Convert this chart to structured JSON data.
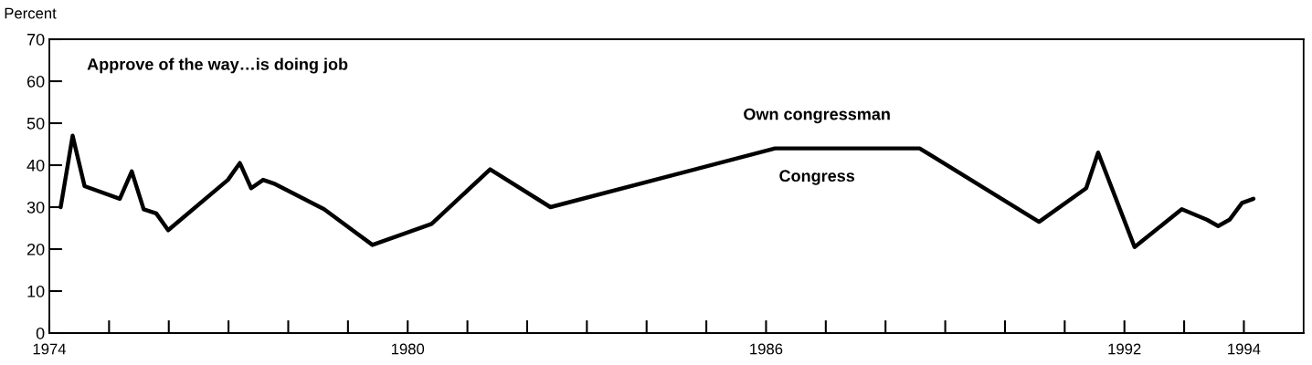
{
  "chart_data": {
    "type": "line",
    "title": "Approve of the way…is doing job",
    "ylabel": "Percent",
    "x": [
      1974.19,
      1974.39,
      1974.59,
      1975.18,
      1975.38,
      1975.58,
      1975.79,
      1975.99,
      1976.99,
      1977.19,
      1977.38,
      1977.58,
      1977.78,
      1978.6,
      1979.41,
      1980.4,
      1981.38,
      1982.39,
      1986.15,
      1988.57,
      1990.57,
      1991.36,
      1991.56,
      1992.17,
      1992.96,
      1993.38,
      1993.57,
      1993.76,
      1993.97,
      1994.16
    ],
    "series": [
      {
        "color": "#000000",
        "values": [
          30,
          47,
          35,
          32,
          38.5,
          29.5,
          28.5,
          24.5,
          36.5,
          40.5,
          34.5,
          36.5,
          35.5,
          29.5,
          21,
          26,
          39,
          30,
          44,
          44,
          26.5,
          34.5,
          43,
          20.5,
          29.5,
          27,
          25.5,
          27,
          31,
          32
        ]
      }
    ],
    "annotations": [
      "Own congressman",
      "Congress"
    ],
    "xlim": [
      1974,
      1995
    ],
    "ylim": [
      0,
      70
    ],
    "xticks": [
      1974,
      {
        "value": 1975,
        "label": null
      },
      {
        "value": 1976,
        "label": null
      },
      {
        "value": 1977,
        "label": null
      },
      {
        "value": 1978,
        "label": null
      },
      {
        "value": 1979,
        "label": null
      },
      1980,
      {
        "value": 1981,
        "label": null
      },
      {
        "value": 1982,
        "label": null
      },
      {
        "value": 1983,
        "label": null
      },
      {
        "value": 1984,
        "label": null
      },
      {
        "value": 1985,
        "label": null
      },
      1986,
      {
        "value": 1987,
        "label": null
      },
      {
        "value": 1988,
        "label": null
      },
      {
        "value": 1989,
        "label": null
      },
      {
        "value": 1990,
        "label": null
      },
      {
        "value": 1991,
        "label": null
      },
      1992,
      {
        "value": 1993,
        "label": null
      },
      1994
    ],
    "yticks": [
      0,
      10,
      20,
      30,
      40,
      50,
      60,
      70
    ],
    "grid": false,
    "marker": "none",
    "line_style": "solid"
  }
}
